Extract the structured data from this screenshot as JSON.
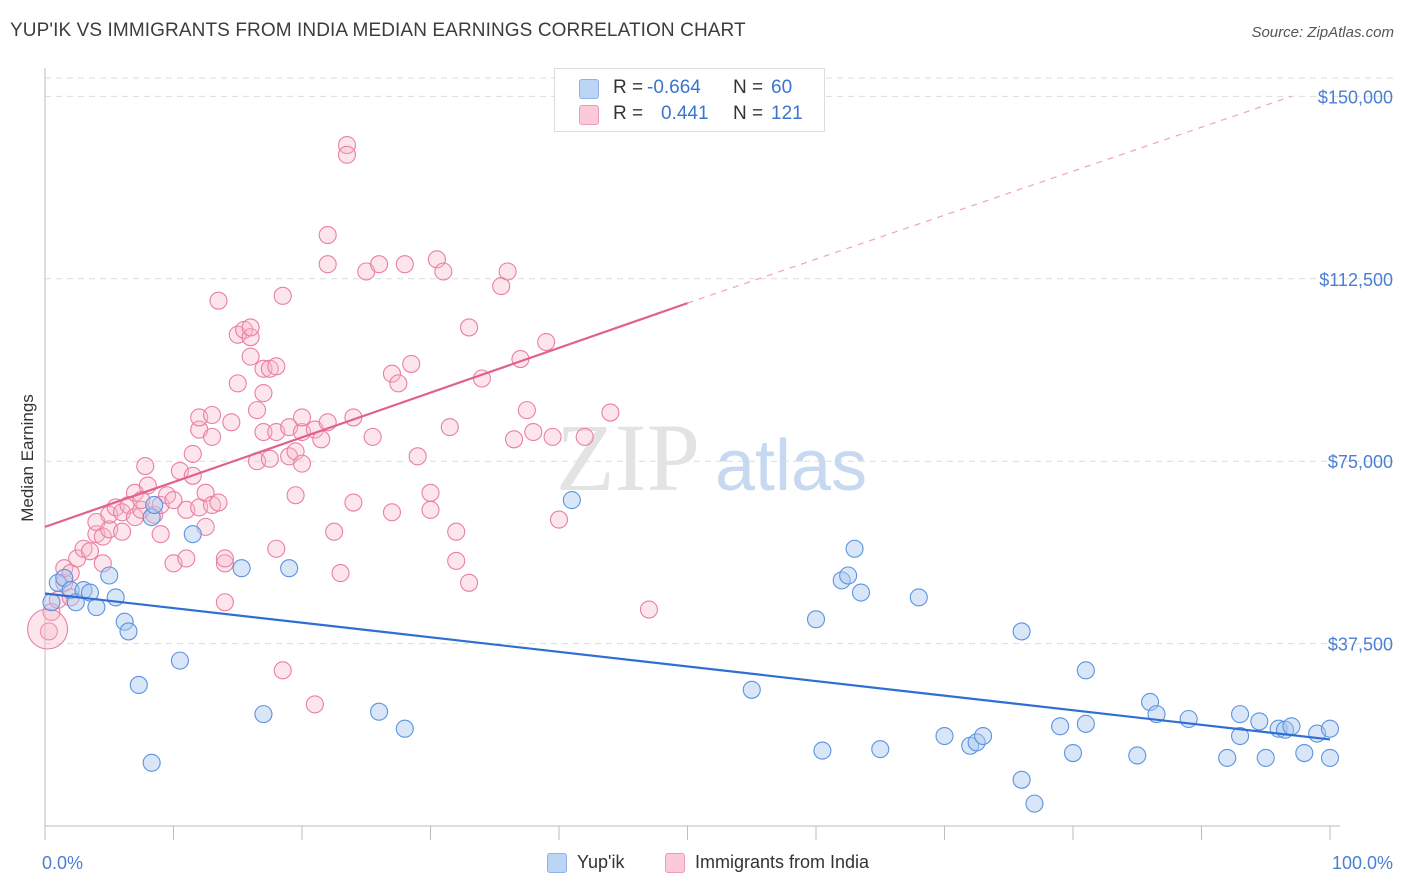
{
  "header": {
    "title": "YUP'IK VS IMMIGRANTS FROM INDIA MEDIAN EARNINGS CORRELATION CHART",
    "source": "Source: ZipAtlas.com"
  },
  "watermark": {
    "zip": "ZIP",
    "atlas": "atlas"
  },
  "legend": {
    "rows": [
      {
        "r_label": "R =",
        "r_value": "-0.664",
        "n_label": "N =",
        "n_value": "60",
        "color": "#a9c8f0"
      },
      {
        "r_label": "R =",
        "r_value": "0.441",
        "n_label": "N =",
        "n_value": "121",
        "color": "#f7b6c9"
      }
    ]
  },
  "bottom_legend": {
    "items": [
      {
        "label": "Yup'ik",
        "color": "#a9c8f0"
      },
      {
        "label": "Immigrants from India",
        "color": "#f7b6c9"
      }
    ]
  },
  "chart_data": {
    "type": "scatter",
    "ylabel": "Median Earnings",
    "xlim": [
      0,
      100
    ],
    "ylim": [
      0,
      150000
    ],
    "x_tick_labels": [
      "0.0%",
      "100.0%"
    ],
    "y_ticks": [
      37500,
      75000,
      112500,
      150000
    ],
    "y_tick_labels": [
      "$37,500",
      "$75,000",
      "$112,500",
      "$150,000"
    ],
    "grid": "horizontal dashed",
    "legend_position": "top-center",
    "colors": {
      "yupik": "#5b93e0",
      "india": "#e87aa0",
      "yupik_line": "#2f6fd1",
      "india_line": "#e0608e"
    },
    "series": [
      {
        "name": "Yup'ik",
        "trend": {
          "x": [
            0,
            100
          ],
          "y": [
            47800,
            17800
          ],
          "dashed_to": null
        },
        "points": [
          [
            0.5,
            46000
          ],
          [
            1,
            50000
          ],
          [
            1.5,
            51000
          ],
          [
            2,
            48500
          ],
          [
            2.4,
            46000
          ],
          [
            3,
            48500
          ],
          [
            3.5,
            48000
          ],
          [
            4,
            45000
          ],
          [
            5,
            51500
          ],
          [
            5.5,
            47000
          ],
          [
            6.2,
            42000
          ],
          [
            6.5,
            40000
          ],
          [
            7.3,
            29000
          ],
          [
            8.3,
            13000
          ],
          [
            8.3,
            63500
          ],
          [
            8.5,
            66000
          ],
          [
            10.5,
            34000
          ],
          [
            11.5,
            60000
          ],
          [
            15.3,
            53000
          ],
          [
            17,
            23000
          ],
          [
            19,
            53000
          ],
          [
            26,
            23500
          ],
          [
            28,
            20000
          ],
          [
            41,
            67000
          ],
          [
            55,
            28000
          ],
          [
            60,
            42500
          ],
          [
            60.5,
            15500
          ],
          [
            62,
            50500
          ],
          [
            62.5,
            51500
          ],
          [
            63,
            57000
          ],
          [
            63.5,
            48000
          ],
          [
            65,
            15800
          ],
          [
            68,
            47000
          ],
          [
            70,
            18500
          ],
          [
            72,
            16500
          ],
          [
            72.5,
            17200
          ],
          [
            73,
            18500
          ],
          [
            76,
            40000
          ],
          [
            76,
            9500
          ],
          [
            77,
            4600
          ],
          [
            79,
            20500
          ],
          [
            80,
            15000
          ],
          [
            81,
            32000
          ],
          [
            81,
            21000
          ],
          [
            85,
            14500
          ],
          [
            86,
            25500
          ],
          [
            86.5,
            23000
          ],
          [
            89,
            22000
          ],
          [
            92,
            14000
          ],
          [
            93,
            23000
          ],
          [
            93,
            18500
          ],
          [
            94.5,
            21500
          ],
          [
            95,
            14000
          ],
          [
            96,
            20000
          ],
          [
            96.5,
            19800
          ],
          [
            97,
            20500
          ],
          [
            98,
            15000
          ],
          [
            99,
            19000
          ],
          [
            100,
            14000
          ],
          [
            100,
            20000
          ]
        ]
      },
      {
        "name": "Immigrants from India",
        "trend": {
          "x": [
            0,
            50
          ],
          "y": [
            61500,
            107500
          ],
          "dashed_to": [
            97,
            150000
          ]
        },
        "points": [
          [
            0.3,
            40000
          ],
          [
            0.5,
            44000
          ],
          [
            1,
            46500
          ],
          [
            1.5,
            50000
          ],
          [
            1.5,
            53000
          ],
          [
            2,
            47000
          ],
          [
            2,
            52000
          ],
          [
            2.5,
            55000
          ],
          [
            3,
            57000
          ],
          [
            3.5,
            56500
          ],
          [
            4,
            60000
          ],
          [
            4,
            62500
          ],
          [
            4.5,
            54000
          ],
          [
            4.5,
            59500
          ],
          [
            5,
            61000
          ],
          [
            5,
            64000
          ],
          [
            5.5,
            65500
          ],
          [
            6,
            60500
          ],
          [
            6,
            64500
          ],
          [
            6.5,
            66000
          ],
          [
            7,
            63500
          ],
          [
            7,
            68500
          ],
          [
            7.5,
            65000
          ],
          [
            7.5,
            67000
          ],
          [
            7.8,
            74000
          ],
          [
            8,
            70000
          ],
          [
            8.5,
            64000
          ],
          [
            9,
            60000
          ],
          [
            9,
            66000
          ],
          [
            9.5,
            68000
          ],
          [
            10,
            54000
          ],
          [
            10,
            67000
          ],
          [
            10.5,
            73000
          ],
          [
            11,
            65000
          ],
          [
            11,
            55000
          ],
          [
            11.5,
            76500
          ],
          [
            11.5,
            72000
          ],
          [
            12,
            65500
          ],
          [
            12,
            81500
          ],
          [
            12,
            84000
          ],
          [
            12.5,
            61500
          ],
          [
            12.5,
            68500
          ],
          [
            13,
            66000
          ],
          [
            13,
            84500
          ],
          [
            13,
            80000
          ],
          [
            13.5,
            66500
          ],
          [
            13.5,
            108000
          ],
          [
            14,
            46000
          ],
          [
            14,
            54000
          ],
          [
            14,
            55000
          ],
          [
            14.5,
            83000
          ],
          [
            15,
            91000
          ],
          [
            15,
            101000
          ],
          [
            15.5,
            102000
          ],
          [
            16,
            96500
          ],
          [
            16,
            100500
          ],
          [
            16,
            102500
          ],
          [
            16.5,
            75000
          ],
          [
            16.5,
            85500
          ],
          [
            17,
            81000
          ],
          [
            17,
            89000
          ],
          [
            17,
            94000
          ],
          [
            17.5,
            94000
          ],
          [
            17.5,
            75500
          ],
          [
            18,
            81000
          ],
          [
            18,
            57000
          ],
          [
            18,
            94500
          ],
          [
            18.5,
            32000
          ],
          [
            18.5,
            109000
          ],
          [
            19,
            82000
          ],
          [
            19,
            76000
          ],
          [
            19.5,
            68000
          ],
          [
            19.5,
            77000
          ],
          [
            20,
            74500
          ],
          [
            20,
            81000
          ],
          [
            20,
            84000
          ],
          [
            21,
            25000
          ],
          [
            21,
            81500
          ],
          [
            21.5,
            79500
          ],
          [
            22,
            115500
          ],
          [
            22,
            121500
          ],
          [
            22,
            83000
          ],
          [
            22.5,
            60500
          ],
          [
            23,
            52000
          ],
          [
            23.5,
            140000
          ],
          [
            23.5,
            138000
          ],
          [
            24,
            66500
          ],
          [
            24,
            84000
          ],
          [
            25,
            114000
          ],
          [
            25.5,
            80000
          ],
          [
            26,
            115500
          ],
          [
            27,
            64500
          ],
          [
            27,
            93000
          ],
          [
            27.5,
            91000
          ],
          [
            28,
            115500
          ],
          [
            28.5,
            95000
          ],
          [
            29,
            76000
          ],
          [
            30,
            68500
          ],
          [
            30,
            65000
          ],
          [
            30.5,
            116500
          ],
          [
            31,
            114000
          ],
          [
            31.5,
            82000
          ],
          [
            32,
            60500
          ],
          [
            32,
            54500
          ],
          [
            33,
            50000
          ],
          [
            33,
            102500
          ],
          [
            34,
            92000
          ],
          [
            35.5,
            111000
          ],
          [
            36,
            114000
          ],
          [
            36.5,
            79500
          ],
          [
            37,
            96000
          ],
          [
            37.5,
            85500
          ],
          [
            38,
            81000
          ],
          [
            39,
            99500
          ],
          [
            39.5,
            80000
          ],
          [
            42,
            80000
          ],
          [
            44,
            85000
          ],
          [
            47,
            44500
          ],
          [
            40,
            63000
          ]
        ]
      }
    ]
  }
}
